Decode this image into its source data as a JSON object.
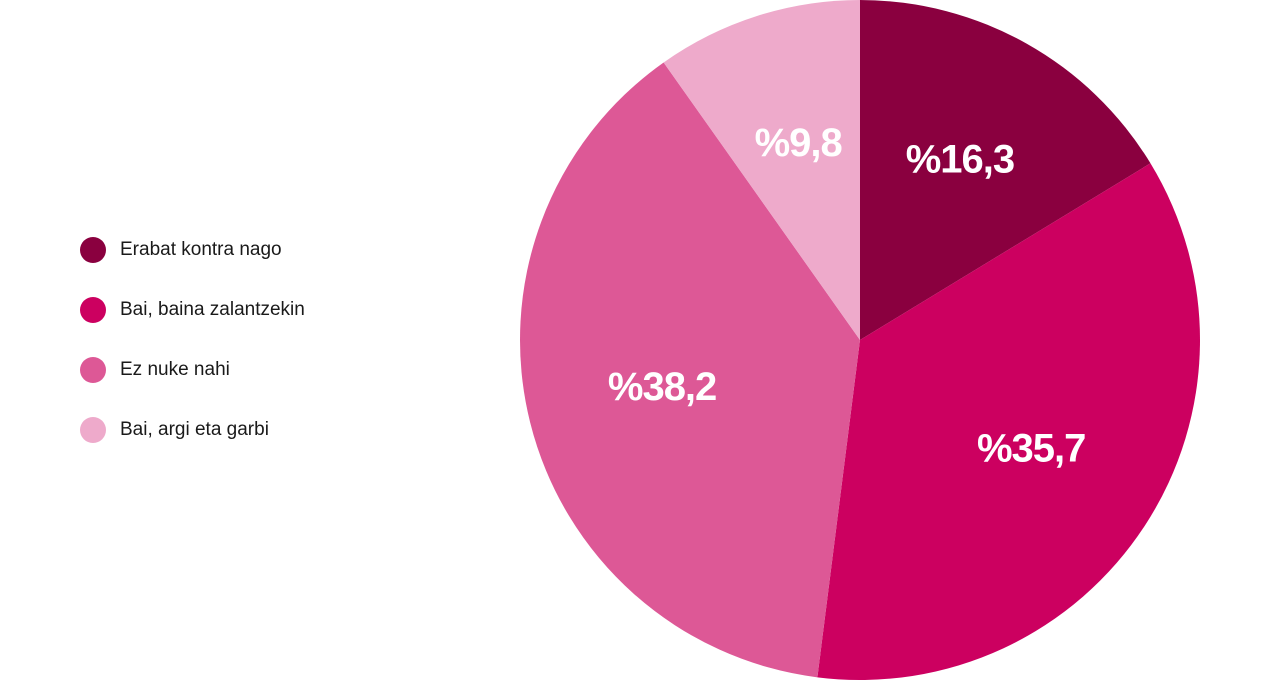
{
  "chart_data": {
    "type": "pie",
    "categories": [
      "Erabat kontra nago",
      "Bai, baina zalantzekin",
      "Ez nuke nahi",
      "Bai, argi eta garbi"
    ],
    "values": [
      16.3,
      35.7,
      38.2,
      9.8
    ],
    "value_labels": [
      "%16,3",
      "%35,7",
      "%38,2",
      "%9,8"
    ],
    "colors": [
      "#8a003f",
      "#cc0060",
      "#dd5896",
      "#eeaacb"
    ],
    "legend": "left"
  }
}
